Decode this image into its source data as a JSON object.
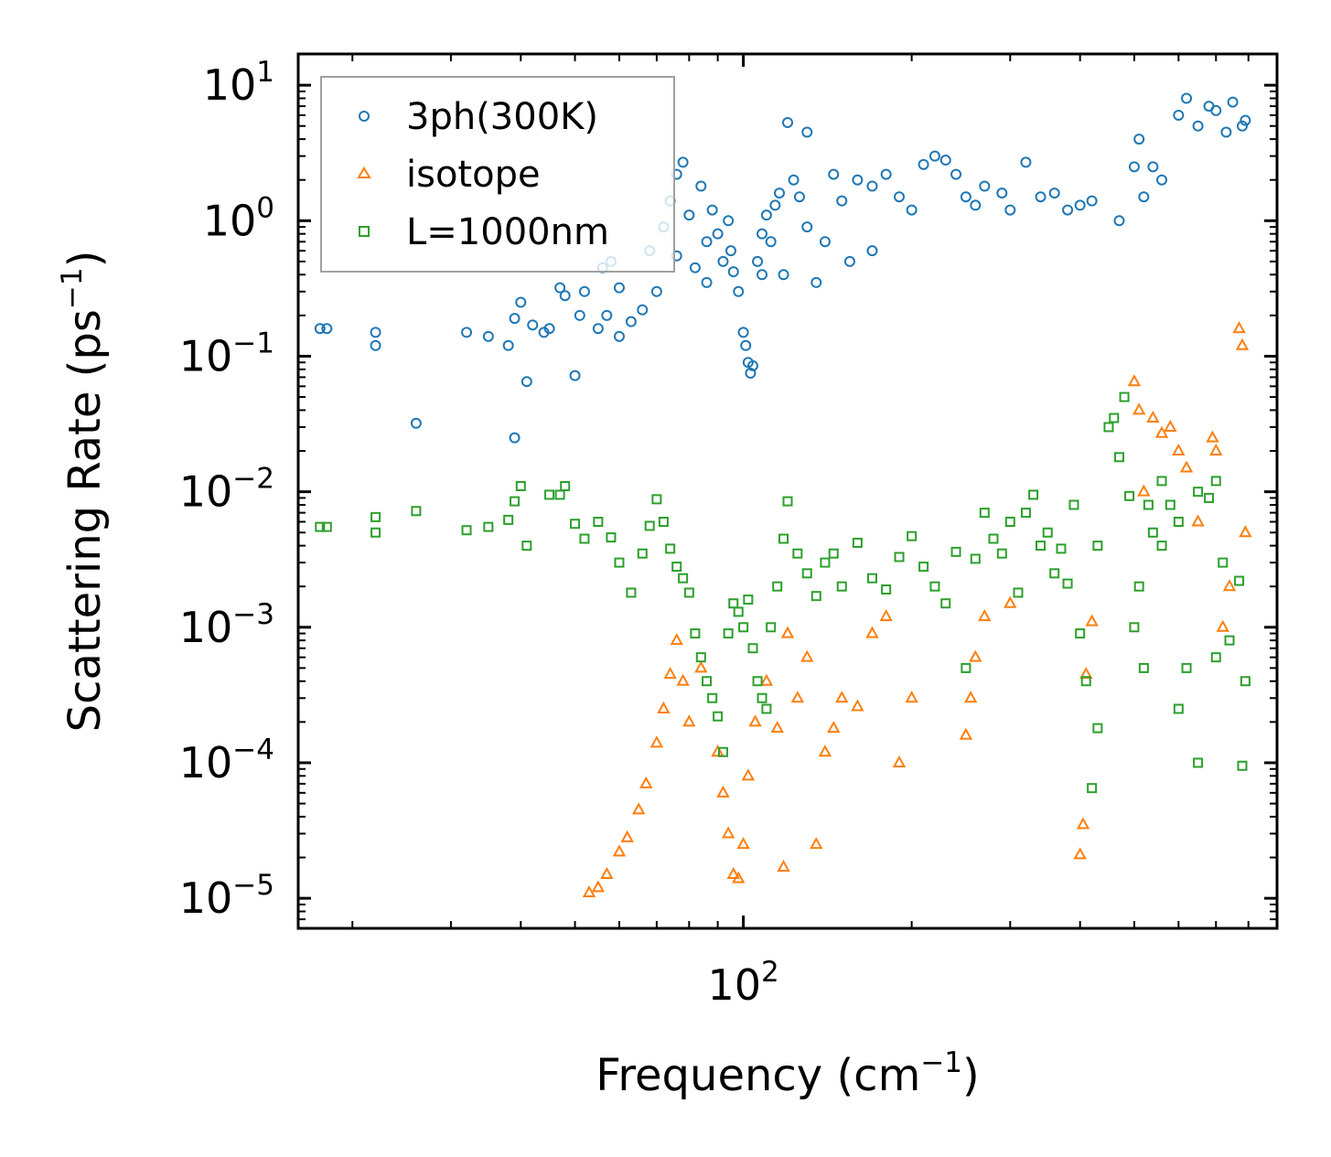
{
  "chart_data": {
    "type": "scatter",
    "title": "",
    "xscale": "log",
    "yscale": "log",
    "xlim": [
      16,
      900
    ],
    "ylim": [
      6e-06,
      17
    ],
    "xlabel": {
      "main": "Frequency (cm",
      "sup": "−1",
      "tail": ")"
    },
    "ylabel": {
      "main": "Scattering Rate (ps",
      "sup": "−1",
      "tail": ")"
    },
    "xticks": [
      {
        "value": 100,
        "base": "10",
        "exp": "2"
      }
    ],
    "yticks": [
      {
        "value": 10,
        "base": "10",
        "exp": "1"
      },
      {
        "value": 1,
        "base": "10",
        "exp": "0"
      },
      {
        "value": 0.1,
        "base": "10",
        "exp": "−1"
      },
      {
        "value": 0.01,
        "base": "10",
        "exp": "−2"
      },
      {
        "value": 0.001,
        "base": "10",
        "exp": "−3"
      },
      {
        "value": 0.0001,
        "base": "10",
        "exp": "−4"
      },
      {
        "value": 1e-05,
        "base": "10",
        "exp": "−5"
      }
    ],
    "legend_position": "top-left",
    "series": [
      {
        "name": "3ph(300K)",
        "marker": "circle",
        "color": "#1f77b4",
        "points": [
          [
            17.5,
            0.16
          ],
          [
            18,
            0.16
          ],
          [
            22,
            0.15
          ],
          [
            22,
            0.12
          ],
          [
            26,
            0.032
          ],
          [
            32,
            0.15
          ],
          [
            35,
            0.14
          ],
          [
            38,
            0.12
          ],
          [
            39,
            0.19
          ],
          [
            40,
            0.25
          ],
          [
            41,
            0.065
          ],
          [
            42,
            0.17
          ],
          [
            44,
            0.15
          ],
          [
            45,
            0.16
          ],
          [
            47,
            0.32
          ],
          [
            48,
            0.28
          ],
          [
            39,
            0.025
          ],
          [
            50,
            0.072
          ],
          [
            51,
            0.2
          ],
          [
            52,
            0.3
          ],
          [
            55,
            0.16
          ],
          [
            57,
            0.2
          ],
          [
            60,
            0.14
          ],
          [
            63,
            0.18
          ],
          [
            66,
            0.22
          ],
          [
            70,
            0.3
          ],
          [
            72,
            0.9
          ],
          [
            74,
            1.4
          ],
          [
            76,
            2.2
          ],
          [
            78,
            2.7
          ],
          [
            80,
            1.1
          ],
          [
            82,
            0.45
          ],
          [
            84,
            1.8
          ],
          [
            86,
            0.35
          ],
          [
            88,
            1.2
          ],
          [
            90,
            0.8
          ],
          [
            92,
            0.5
          ],
          [
            94,
            1.0
          ],
          [
            96,
            0.42
          ],
          [
            98,
            0.3
          ],
          [
            100,
            0.15
          ],
          [
            101,
            0.12
          ],
          [
            102,
            0.09
          ],
          [
            103,
            0.075
          ],
          [
            104,
            0.085
          ],
          [
            106,
            0.5
          ],
          [
            108,
            0.8
          ],
          [
            110,
            1.1
          ],
          [
            112,
            0.7
          ],
          [
            114,
            1.3
          ],
          [
            116,
            1.6
          ],
          [
            118,
            0.4
          ],
          [
            120,
            5.3
          ],
          [
            123,
            2.0
          ],
          [
            126,
            1.5
          ],
          [
            130,
            4.5
          ],
          [
            135,
            0.35
          ],
          [
            140,
            0.7
          ],
          [
            145,
            2.2
          ],
          [
            150,
            1.4
          ],
          [
            155,
            0.5
          ],
          [
            160,
            2.0
          ],
          [
            170,
            1.8
          ],
          [
            180,
            2.2
          ],
          [
            190,
            1.5
          ],
          [
            200,
            1.2
          ],
          [
            210,
            2.6
          ],
          [
            220,
            3.0
          ],
          [
            230,
            2.8
          ],
          [
            240,
            2.2
          ],
          [
            250,
            1.5
          ],
          [
            260,
            1.3
          ],
          [
            270,
            1.8
          ],
          [
            290,
            1.6
          ],
          [
            300,
            1.2
          ],
          [
            320,
            2.7
          ],
          [
            340,
            1.5
          ],
          [
            360,
            1.6
          ],
          [
            380,
            1.2
          ],
          [
            400,
            1.3
          ],
          [
            420,
            1.4
          ],
          [
            470,
            1.0
          ],
          [
            500,
            2.5
          ],
          [
            510,
            4.0
          ],
          [
            520,
            1.5
          ],
          [
            540,
            2.5
          ],
          [
            560,
            2.0
          ],
          [
            600,
            6.0
          ],
          [
            620,
            8.0
          ],
          [
            650,
            5.0
          ],
          [
            680,
            7.0
          ],
          [
            700,
            6.5
          ],
          [
            730,
            4.5
          ],
          [
            750,
            7.5
          ],
          [
            780,
            5.0
          ],
          [
            790,
            5.5
          ],
          [
            60,
            0.32
          ],
          [
            58,
            0.5
          ],
          [
            56,
            0.45
          ],
          [
            68,
            0.6
          ],
          [
            76,
            0.55
          ],
          [
            86,
            0.7
          ],
          [
            95,
            0.6
          ],
          [
            108,
            0.4
          ],
          [
            130,
            0.9
          ],
          [
            170,
            0.6
          ]
        ]
      },
      {
        "name": "isotope",
        "marker": "triangle",
        "color": "#ff7f0e",
        "points": [
          [
            53,
            1.1e-05
          ],
          [
            55,
            1.2e-05
          ],
          [
            57,
            1.5e-05
          ],
          [
            60,
            2.2e-05
          ],
          [
            62,
            2.8e-05
          ],
          [
            65,
            4.5e-05
          ],
          [
            67,
            7e-05
          ],
          [
            70,
            0.00014
          ],
          [
            72,
            0.00025
          ],
          [
            74,
            0.00045
          ],
          [
            76,
            0.0008
          ],
          [
            78,
            0.0004
          ],
          [
            80,
            0.0002
          ],
          [
            84,
            0.0005
          ],
          [
            90,
            0.00012
          ],
          [
            92,
            6e-05
          ],
          [
            94,
            3e-05
          ],
          [
            96,
            1.5e-05
          ],
          [
            98,
            1.4e-05
          ],
          [
            100,
            2.5e-05
          ],
          [
            102,
            8e-05
          ],
          [
            105,
            0.0002
          ],
          [
            110,
            0.0004
          ],
          [
            115,
            0.00018
          ],
          [
            118,
            1.7e-05
          ],
          [
            120,
            0.0009
          ],
          [
            125,
            0.0003
          ],
          [
            130,
            0.0006
          ],
          [
            135,
            2.5e-05
          ],
          [
            140,
            0.00012
          ],
          [
            145,
            0.00018
          ],
          [
            150,
            0.0003
          ],
          [
            160,
            0.00026
          ],
          [
            170,
            0.0009
          ],
          [
            180,
            0.0012
          ],
          [
            190,
            0.0001
          ],
          [
            200,
            0.0003
          ],
          [
            250,
            0.00016
          ],
          [
            255,
            0.0003
          ],
          [
            260,
            0.0006
          ],
          [
            270,
            0.0012
          ],
          [
            300,
            0.0015
          ],
          [
            400,
            2.1e-05
          ],
          [
            405,
            3.5e-05
          ],
          [
            410,
            0.00045
          ],
          [
            420,
            0.0011
          ],
          [
            500,
            0.065
          ],
          [
            510,
            0.04
          ],
          [
            520,
            0.01
          ],
          [
            540,
            0.035
          ],
          [
            560,
            0.027
          ],
          [
            580,
            0.03
          ],
          [
            600,
            0.02
          ],
          [
            620,
            0.015
          ],
          [
            650,
            0.006
          ],
          [
            690,
            0.025
          ],
          [
            700,
            0.02
          ],
          [
            720,
            0.001
          ],
          [
            740,
            0.002
          ],
          [
            770,
            0.16
          ],
          [
            780,
            0.12
          ],
          [
            790,
            0.005
          ]
        ]
      },
      {
        "name": "L=1000nm",
        "marker": "square",
        "color": "#2ca02c",
        "points": [
          [
            17.5,
            0.0055
          ],
          [
            18,
            0.0055
          ],
          [
            22,
            0.0065
          ],
          [
            22,
            0.005
          ],
          [
            26,
            0.0072
          ],
          [
            32,
            0.0052
          ],
          [
            35,
            0.0055
          ],
          [
            38,
            0.0062
          ],
          [
            39,
            0.0085
          ],
          [
            40,
            0.011
          ],
          [
            41,
            0.004
          ],
          [
            45,
            0.0095
          ],
          [
            47,
            0.0095
          ],
          [
            48,
            0.011
          ],
          [
            50,
            0.0058
          ],
          [
            52,
            0.0045
          ],
          [
            55,
            0.006
          ],
          [
            58,
            0.0046
          ],
          [
            60,
            0.003
          ],
          [
            63,
            0.0018
          ],
          [
            66,
            0.0035
          ],
          [
            68,
            0.0056
          ],
          [
            70,
            0.0088
          ],
          [
            72,
            0.006
          ],
          [
            74,
            0.0038
          ],
          [
            76,
            0.0028
          ],
          [
            78,
            0.0023
          ],
          [
            80,
            0.0018
          ],
          [
            82,
            0.0009
          ],
          [
            84,
            0.0006
          ],
          [
            86,
            0.0004
          ],
          [
            88,
            0.0003
          ],
          [
            90,
            0.00022
          ],
          [
            92,
            0.00012
          ],
          [
            94,
            0.0009
          ],
          [
            96,
            0.0015
          ],
          [
            98,
            0.0013
          ],
          [
            100,
            0.001
          ],
          [
            102,
            0.0016
          ],
          [
            104,
            0.0007
          ],
          [
            106,
            0.0004
          ],
          [
            108,
            0.0003
          ],
          [
            110,
            0.00025
          ],
          [
            112,
            0.001
          ],
          [
            115,
            0.002
          ],
          [
            118,
            0.0045
          ],
          [
            120,
            0.0085
          ],
          [
            125,
            0.0035
          ],
          [
            130,
            0.0025
          ],
          [
            135,
            0.0017
          ],
          [
            140,
            0.003
          ],
          [
            145,
            0.0035
          ],
          [
            150,
            0.002
          ],
          [
            160,
            0.0042
          ],
          [
            170,
            0.0023
          ],
          [
            180,
            0.0019
          ],
          [
            190,
            0.0033
          ],
          [
            200,
            0.0047
          ],
          [
            210,
            0.0028
          ],
          [
            220,
            0.002
          ],
          [
            230,
            0.0015
          ],
          [
            240,
            0.0036
          ],
          [
            250,
            0.0005
          ],
          [
            260,
            0.0032
          ],
          [
            270,
            0.007
          ],
          [
            280,
            0.0045
          ],
          [
            290,
            0.0035
          ],
          [
            300,
            0.006
          ],
          [
            310,
            0.0018
          ],
          [
            320,
            0.007
          ],
          [
            330,
            0.0095
          ],
          [
            340,
            0.004
          ],
          [
            350,
            0.005
          ],
          [
            360,
            0.0025
          ],
          [
            370,
            0.0038
          ],
          [
            380,
            0.0021
          ],
          [
            390,
            0.008
          ],
          [
            400,
            0.0009
          ],
          [
            410,
            0.0004
          ],
          [
            420,
            6.5e-05
          ],
          [
            430,
            0.00018
          ],
          [
            450,
            0.03
          ],
          [
            460,
            0.035
          ],
          [
            470,
            0.018
          ],
          [
            480,
            0.05
          ],
          [
            490,
            0.0093
          ],
          [
            500,
            0.001
          ],
          [
            510,
            0.002
          ],
          [
            520,
            0.0005
          ],
          [
            530,
            0.008
          ],
          [
            540,
            0.005
          ],
          [
            560,
            0.012
          ],
          [
            580,
            0.008
          ],
          [
            600,
            0.00025
          ],
          [
            620,
            0.0005
          ],
          [
            650,
            0.0001
          ],
          [
            680,
            0.009
          ],
          [
            700,
            0.0006
          ],
          [
            720,
            0.003
          ],
          [
            740,
            0.0008
          ],
          [
            770,
            0.0022
          ],
          [
            790,
            0.0004
          ],
          [
            780,
            9.5e-05
          ],
          [
            430,
            0.004
          ],
          [
            560,
            0.004
          ],
          [
            600,
            0.006
          ],
          [
            650,
            0.01
          ],
          [
            700,
            0.012
          ]
        ]
      }
    ]
  }
}
